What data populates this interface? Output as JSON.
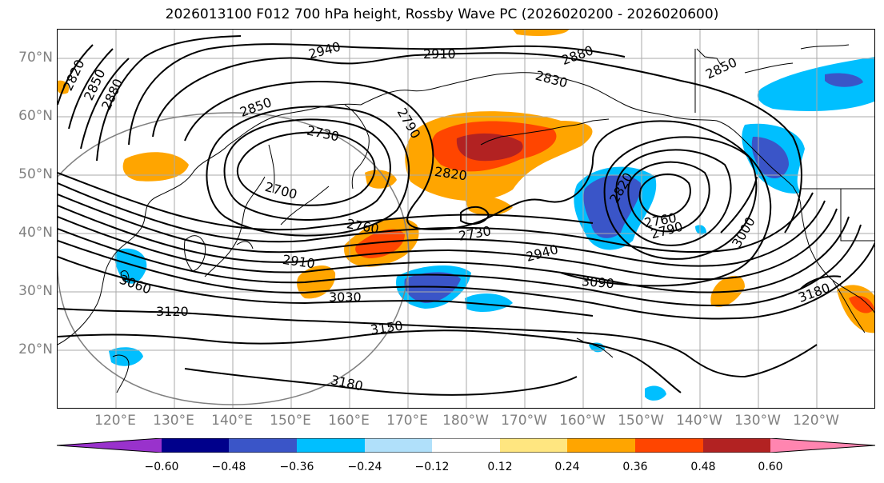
{
  "title": "2026013100 F012 700 hPa height, Rossby Wave PC (2026020200 - 2026020600)",
  "lat_labels": [
    "70°N",
    "60°N",
    "50°N",
    "40°N",
    "30°N",
    "20°N"
  ],
  "lon_labels": [
    "120°E",
    "130°E",
    "140°E",
    "150°E",
    "160°E",
    "170°E",
    "180°W",
    "170°W",
    "160°W",
    "150°W",
    "140°W",
    "130°W",
    "120°W"
  ],
  "contour_labels": [
    "2940",
    "2910",
    "2880",
    "2850",
    "2830",
    "2820",
    "2850",
    "2880",
    "2850",
    "2790",
    "2730",
    "2820",
    "2700",
    "2760",
    "2730",
    "2820",
    "2760",
    "2790",
    "3000",
    "2910",
    "3030",
    "2940",
    "3090",
    "3060",
    "3120",
    "3150",
    "3180",
    "3180"
  ],
  "colorbar": {
    "tick_labels": [
      "−0.60",
      "−0.48",
      "−0.36",
      "−0.24",
      "−0.12",
      "0.12",
      "0.24",
      "0.36",
      "0.48",
      "0.60"
    ],
    "colors": [
      "#9932cc",
      "#00008b",
      "#3a55c8",
      "#00bfff",
      "#b0e0fa",
      "#ffffff",
      "#ffe680",
      "#ffa500",
      "#ff4500",
      "#b22222",
      "#ff85b0"
    ]
  },
  "shading_colors": {
    "neg_1": "#b0e0fa",
    "neg_2": "#00bfff",
    "neg_3": "#3a55c8",
    "neg_4": "#00008b",
    "pos_1": "#ffe680",
    "pos_2": "#ffa500",
    "pos_3": "#ff4500",
    "pos_4": "#b22222"
  }
}
